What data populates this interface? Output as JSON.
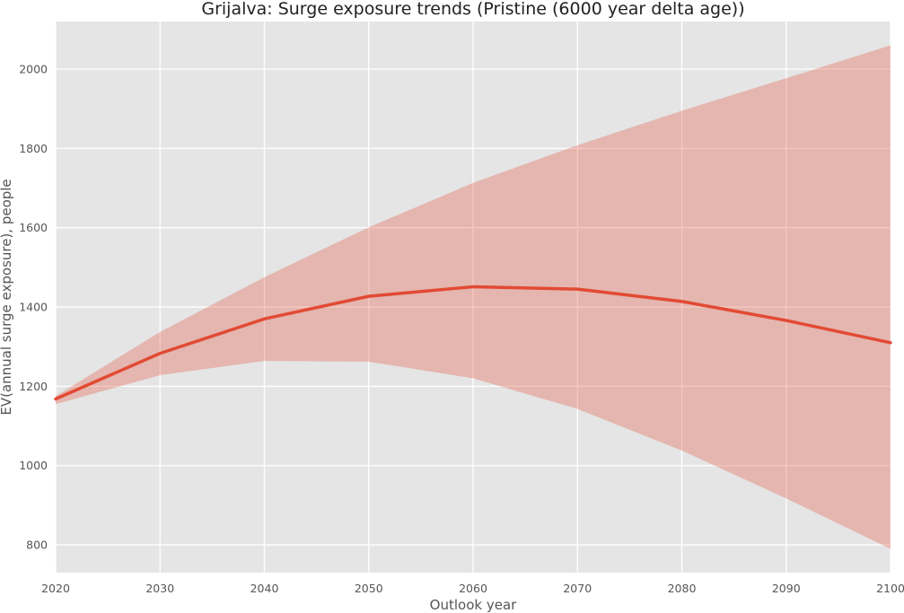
{
  "chart_data": {
    "type": "area",
    "title": "Grijalva: Surge exposure trends (Pristine (6000 year delta age))",
    "xlabel": "Outlook year",
    "ylabel": "EV(annual surge exposure), people",
    "xlim": [
      2020,
      2100
    ],
    "ylim": [
      730,
      2120
    ],
    "xticks": [
      2020,
      2030,
      2040,
      2050,
      2060,
      2070,
      2080,
      2090,
      2100
    ],
    "yticks": [
      800,
      1000,
      1200,
      1400,
      1600,
      1800,
      2000
    ],
    "grid": true,
    "x": [
      2020,
      2030,
      2040,
      2050,
      2060,
      2070,
      2080,
      2090,
      2100
    ],
    "series": [
      {
        "values": [
          1168,
          1283,
          1370,
          1427,
          1451,
          1445,
          1414,
          1366,
          1310
        ],
        "color": "#e24a33"
      }
    ],
    "band": {
      "lower": [
        1155,
        1228,
        1264,
        1262,
        1220,
        1143,
        1038,
        917,
        790
      ],
      "upper": [
        1175,
        1337,
        1475,
        1601,
        1713,
        1808,
        1895,
        1977,
        2060
      ],
      "color": "#e24a33",
      "opacity": 0.3
    },
    "colors": {
      "plot_background": "#e5e5e5",
      "grid": "#ffffff",
      "line": "#e24a33"
    }
  }
}
